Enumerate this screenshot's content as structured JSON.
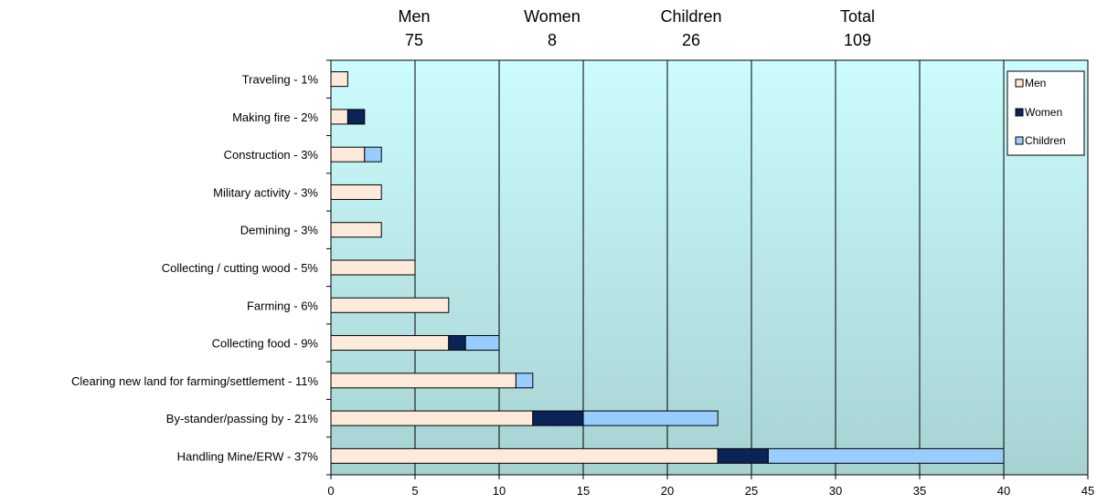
{
  "totals_header": [
    {
      "label": "Men",
      "value": "75"
    },
    {
      "label": "Women",
      "value": "8"
    },
    {
      "label": "Children",
      "value": "26"
    },
    {
      "label": "Total",
      "value": "109"
    }
  ],
  "colors": {
    "men": "#fdeada",
    "women": "#0b2458",
    "children": "#99ccff",
    "plot_top": "#ccfcfd",
    "plot_bottom": "#a6d2d2",
    "grid": "#000000"
  },
  "chart_data": {
    "type": "bar",
    "orientation": "horizontal",
    "stacked": true,
    "categories": [
      "Traveling - 1%",
      "Making fire - 2%",
      "Construction - 3%",
      "Military activity - 3%",
      "Demining - 3%",
      "Collecting / cutting wood - 5%",
      "Farming - 6%",
      "Collecting food - 9%",
      "Clearing new land for farming/settlement - 11%",
      "By-stander/passing by - 21%",
      "Handling Mine/ERW - 37%"
    ],
    "series": [
      {
        "name": "Men",
        "values": [
          1,
          1,
          2,
          3,
          3,
          5,
          7,
          7,
          11,
          12,
          23
        ]
      },
      {
        "name": "Women",
        "values": [
          0,
          1,
          0,
          0,
          0,
          0,
          0,
          1,
          0,
          3,
          3
        ]
      },
      {
        "name": "Children",
        "values": [
          0,
          0,
          1,
          0,
          0,
          0,
          0,
          2,
          1,
          8,
          14
        ]
      }
    ],
    "xlim": [
      0,
      45
    ],
    "xticks": [
      0,
      5,
      10,
      15,
      20,
      25,
      30,
      35,
      40,
      45
    ],
    "grid": "vertical",
    "legend": {
      "position": "top-right",
      "entries": [
        "Men",
        "Women",
        "Children"
      ]
    }
  }
}
